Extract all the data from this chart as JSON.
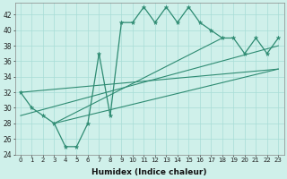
{
  "x_values": [
    0,
    1,
    2,
    3,
    4,
    5,
    6,
    7,
    8,
    9,
    10,
    11,
    12,
    13,
    14,
    15,
    16,
    17,
    18,
    19,
    20,
    21,
    22,
    23
  ],
  "y_main": [
    32,
    30,
    29,
    28,
    25,
    25,
    28,
    37,
    29,
    41,
    41,
    43,
    41,
    43,
    41,
    43,
    41,
    40,
    39,
    39,
    37,
    39,
    37,
    39
  ],
  "straight_lines": [
    [
      [
        0,
        32
      ],
      [
        23,
        35
      ]
    ],
    [
      [
        0,
        29
      ],
      [
        23,
        38
      ]
    ],
    [
      [
        3,
        28
      ],
      [
        18,
        39
      ]
    ],
    [
      [
        3,
        28
      ],
      [
        23,
        35
      ]
    ]
  ],
  "color": "#2e8b72",
  "bg_color": "#cff0ea",
  "grid_color": "#a8ddd6",
  "ylim": [
    24,
    43.5
  ],
  "xlim": [
    -0.5,
    23.5
  ],
  "xlabel": "Humidex (Indice chaleur)",
  "yticks": [
    24,
    26,
    28,
    30,
    32,
    34,
    36,
    38,
    40,
    42
  ],
  "xtick_labels": [
    "0",
    "1",
    "2",
    "3",
    "4",
    "5",
    "6",
    "7",
    "8",
    "9",
    "10",
    "11",
    "12",
    "13",
    "14",
    "15",
    "16",
    "17",
    "18",
    "19",
    "20",
    "21",
    "22",
    "23"
  ]
}
